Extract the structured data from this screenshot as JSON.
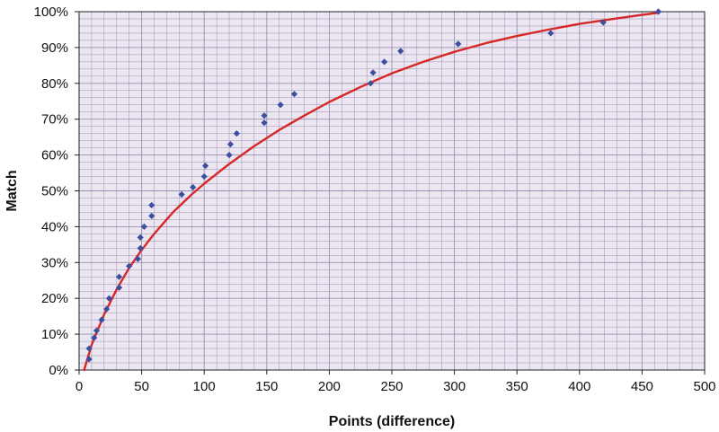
{
  "chart_data": {
    "type": "scatter",
    "title": "",
    "xlabel": "Points (difference)",
    "ylabel": "Match",
    "xlim": [
      0,
      500
    ],
    "ylim": [
      0,
      1
    ],
    "x_ticks": [
      0,
      50,
      100,
      150,
      200,
      250,
      300,
      350,
      400,
      450,
      500
    ],
    "y_ticks": [
      0,
      0.1,
      0.2,
      0.3,
      0.4,
      0.5,
      0.6,
      0.7,
      0.8,
      0.9,
      1.0
    ],
    "x_tick_labels": [
      "0",
      "50",
      "100",
      "150",
      "200",
      "250",
      "300",
      "350",
      "400",
      "450",
      "500"
    ],
    "y_tick_labels": [
      "0%",
      "10%",
      "20%",
      "30%",
      "40%",
      "50%",
      "60%",
      "70%",
      "80%",
      "90%",
      "100%"
    ],
    "grid": true,
    "legend": "none",
    "colors": {
      "plot_background": "#ece6f1",
      "grid": "#9b8fb0",
      "markers": "#3d4fa0",
      "trend": "#d62828"
    },
    "series": [
      {
        "kind": "points",
        "points": [
          [
            8,
            0.03
          ],
          [
            8,
            0.06
          ],
          [
            12,
            0.09
          ],
          [
            14,
            0.11
          ],
          [
            18,
            0.14
          ],
          [
            22,
            0.17
          ],
          [
            24,
            0.2
          ],
          [
            32,
            0.23
          ],
          [
            32,
            0.26
          ],
          [
            40,
            0.29
          ],
          [
            47,
            0.31
          ],
          [
            49,
            0.34
          ],
          [
            49,
            0.37
          ],
          [
            52,
            0.4
          ],
          [
            58,
            0.43
          ],
          [
            58,
            0.46
          ],
          [
            82,
            0.49
          ],
          [
            91,
            0.51
          ],
          [
            100,
            0.54
          ],
          [
            101,
            0.57
          ],
          [
            120,
            0.6
          ],
          [
            121,
            0.63
          ],
          [
            126,
            0.66
          ],
          [
            148,
            0.69
          ],
          [
            148,
            0.71
          ],
          [
            161,
            0.74
          ],
          [
            172,
            0.77
          ],
          [
            233,
            0.8
          ],
          [
            235,
            0.83
          ],
          [
            244,
            0.86
          ],
          [
            257,
            0.89
          ],
          [
            303,
            0.91
          ],
          [
            377,
            0.94
          ],
          [
            419,
            0.97
          ],
          [
            463,
            1.0
          ]
        ]
      },
      {
        "kind": "trend",
        "points": [
          [
            4,
            0.0
          ],
          [
            10,
            0.07
          ],
          [
            20,
            0.155
          ],
          [
            30,
            0.225
          ],
          [
            40,
            0.285
          ],
          [
            50,
            0.335
          ],
          [
            60,
            0.38
          ],
          [
            75,
            0.44
          ],
          [
            90,
            0.49
          ],
          [
            100,
            0.52
          ],
          [
            120,
            0.575
          ],
          [
            140,
            0.625
          ],
          [
            160,
            0.67
          ],
          [
            180,
            0.71
          ],
          [
            200,
            0.748
          ],
          [
            225,
            0.79
          ],
          [
            250,
            0.828
          ],
          [
            275,
            0.86
          ],
          [
            300,
            0.888
          ],
          [
            325,
            0.912
          ],
          [
            350,
            0.932
          ],
          [
            375,
            0.95
          ],
          [
            400,
            0.966
          ],
          [
            425,
            0.979
          ],
          [
            450,
            0.991
          ],
          [
            463,
            0.997
          ]
        ]
      }
    ]
  }
}
